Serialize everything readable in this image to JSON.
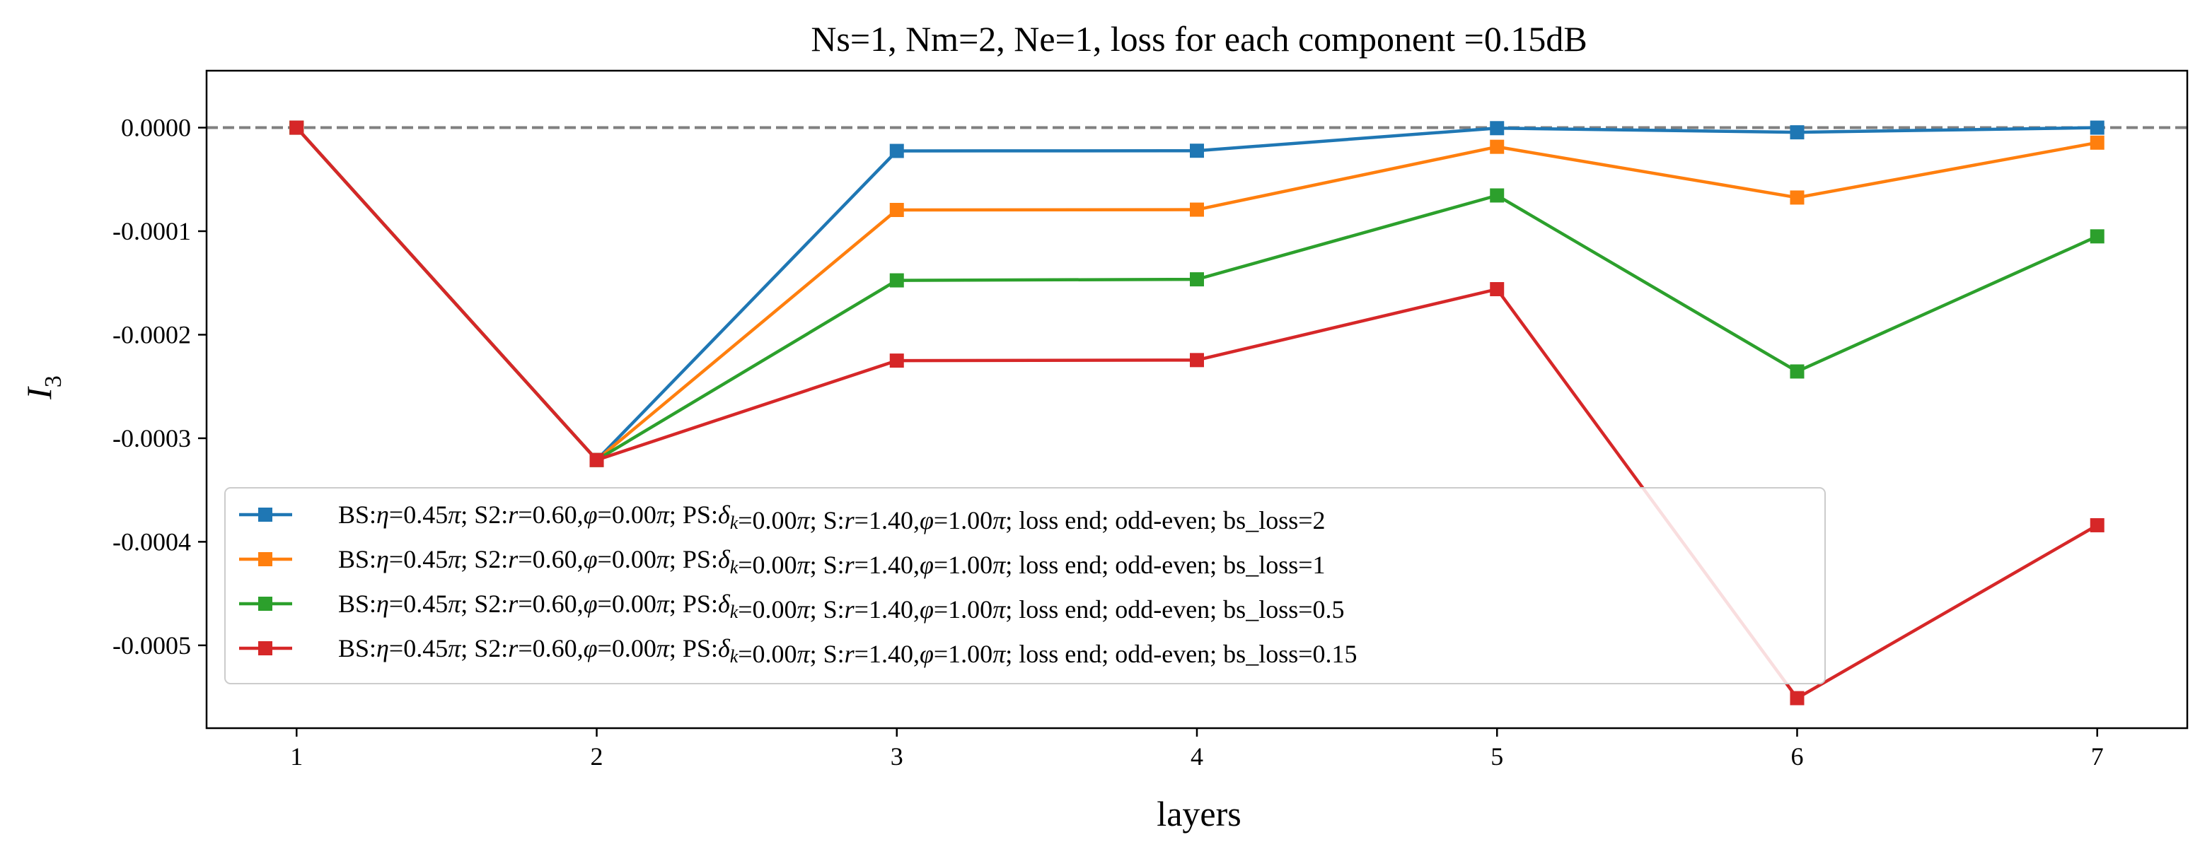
{
  "chart_data": {
    "type": "line",
    "title": "Ns=1, Nm=2, Ne=1, loss for each component =0.15dB",
    "xlabel": "layers",
    "ylabel": "I",
    "ylabel_sub": "3",
    "x": [
      1,
      2,
      3,
      4,
      5,
      6,
      7
    ],
    "xlim": [
      0.7,
      7.3
    ],
    "ylim": [
      -0.00058,
      5.5e-05
    ],
    "xticks": [
      1,
      2,
      3,
      4,
      5,
      6,
      7
    ],
    "yticks": [
      0.0,
      -0.0001,
      -0.0002,
      -0.0003,
      -0.0004,
      -0.0005
    ],
    "ytick_labels": [
      "0.0000",
      "-0.0001",
      "-0.0002",
      "-0.0003",
      "-0.0004",
      "-0.0005"
    ],
    "reference_line": {
      "y": 0,
      "style": "dashed",
      "color": "#808080"
    },
    "grid": false,
    "legend_position": "lower-left",
    "series": [
      {
        "name": "BS:η=0.45π;  S2:r=0.60,φ=0.00π;  PS:δk=0.00π;  S:r=1.40,φ=1.00π;  loss end;  odd-even;  bs_loss=2",
        "color": "#1f77b4",
        "marker": "square",
        "values": [
          0.0,
          -0.000321,
          -2.25e-05,
          -2.23e-05,
          -5e-07,
          -4.5e-06,
          0.0
        ]
      },
      {
        "name": "BS:η=0.45π;  S2:r=0.60,φ=0.00π;  PS:δk=0.00π;  S:r=1.40,φ=1.00π;  loss end;  odd-even;  bs_loss=1",
        "color": "#ff7f0e",
        "marker": "square",
        "values": [
          0.0,
          -0.000321,
          -7.95e-05,
          -7.92e-05,
          -1.85e-05,
          -6.75e-05,
          -1.45e-05
        ]
      },
      {
        "name": "BS:η=0.45π;  S2:r=0.60,φ=0.00π;  PS:δk=0.00π;  S:r=1.40,φ=1.00π;  loss end;  odd-even;  bs_loss=0.5",
        "color": "#2ca02c",
        "marker": "square",
        "values": [
          0.0,
          -0.000321,
          -0.0001475,
          -0.0001465,
          -6.55e-05,
          -0.0002355,
          -0.000105
        ]
      },
      {
        "name": "BS:η=0.45π;  S2:r=0.60,φ=0.00π;  PS:δk=0.00π;  S:r=1.40,φ=1.00π;  loss end;  odd-even;  bs_loss=0.15",
        "color": "#d62728",
        "marker": "square",
        "values": [
          0.0,
          -0.000321,
          -0.000225,
          -0.0002245,
          -0.000156,
          -0.000551,
          -0.000384
        ]
      }
    ]
  }
}
